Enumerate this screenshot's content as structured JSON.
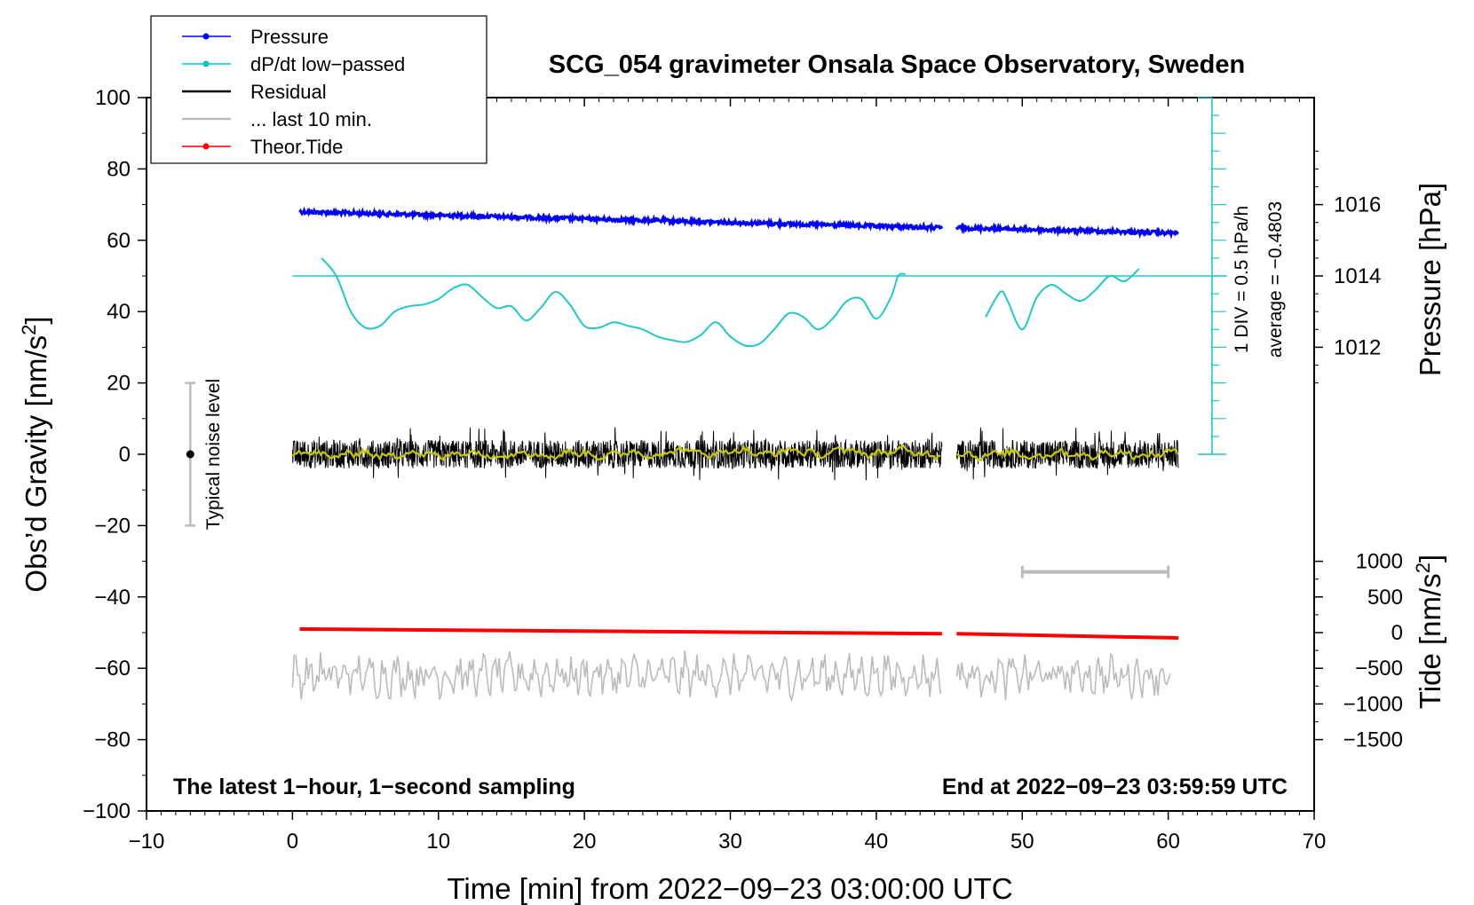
{
  "chart_data": {
    "type": "line",
    "title": "SCG_054 gravimeter Onsala Space Observatory, Sweden",
    "xlabel": "Time [min] from 2022−09−23 03:00:00 UTC",
    "ylabel_left": "Obs’d Gravity [nm/s",
    "ylabel_left_sup": "2",
    "ylabel_left_end": "]",
    "ylabel_pressure": "Pressure [hPa]",
    "ylabel_tide": "Tide [nm/s",
    "ylabel_tide_sup": "2",
    "ylabel_tide_end": "]",
    "xlim": [
      -10,
      70
    ],
    "ylim_left": [
      -100,
      100
    ],
    "x_ticks": [
      -10,
      0,
      10,
      20,
      30,
      40,
      50,
      60,
      70
    ],
    "x_tick_labels": [
      "−10",
      "0",
      "10",
      "20",
      "30",
      "40",
      "50",
      "60",
      "70"
    ],
    "y_ticks_left": [
      100,
      80,
      60,
      40,
      20,
      0,
      -20,
      -40,
      -60,
      -80,
      -100
    ],
    "y_tick_labels_left": [
      "100",
      "80",
      "60",
      "40",
      "20",
      "0",
      "−20",
      "−40",
      "−60",
      "−80",
      "−100"
    ],
    "pressure_ticks": [
      1016,
      1014,
      1012
    ],
    "pressure_tick_labels": [
      "1016",
      "1014",
      "1012"
    ],
    "pressure_scale": {
      "hpa_ref": 1014,
      "gravity_ref": 50,
      "gravity_per_hpa": 10
    },
    "tide_ticks": [
      1000,
      500,
      0,
      -500,
      -1000,
      -1500
    ],
    "tide_tick_labels": [
      "1000",
      "500",
      "0",
      "−500",
      "−1000",
      "−1500"
    ],
    "tide_scale": {
      "ref_value": 0,
      "gravity_ref": -50,
      "gravity_per_unit": 0.02
    },
    "legend": [
      {
        "label": "Pressure",
        "color": "#0000ff",
        "marker": true
      },
      {
        "label": "dP/dt low−passed",
        "color": "#00c8c8",
        "marker": true
      },
      {
        "label": "Residual",
        "color": "#000000",
        "marker": false
      },
      {
        "label": "... last 10 min.",
        "color": "#bbbbbb",
        "marker": false
      },
      {
        "label": "Theor.Tide",
        "color": "#ff0000",
        "marker": true
      }
    ],
    "series": [
      {
        "name": "Pressure",
        "color": "#0000ff",
        "unit": "hPa",
        "segments": [
          [
            0.5,
            1015.8,
            44.5,
            1015.35
          ],
          [
            45.5,
            1015.35,
            60.7,
            1015.2
          ]
        ]
      },
      {
        "name": "dP/dt low-passed",
        "color": "#20c8c8",
        "unit": "nm/s2 display",
        "points_a": [
          [
            2,
            55
          ],
          [
            3,
            50
          ],
          [
            4,
            40
          ],
          [
            5,
            35.5
          ],
          [
            6,
            36
          ],
          [
            7,
            40
          ],
          [
            8,
            41.5
          ],
          [
            9,
            42
          ],
          [
            10,
            43.5
          ],
          [
            11,
            46.5
          ],
          [
            12,
            47.5
          ],
          [
            13,
            44
          ],
          [
            14,
            41
          ],
          [
            15,
            41.5
          ],
          [
            16,
            37.5
          ],
          [
            17,
            41
          ],
          [
            18,
            45.5
          ],
          [
            19,
            42
          ],
          [
            20,
            36
          ],
          [
            21,
            35.5
          ],
          [
            22,
            37
          ],
          [
            23,
            36
          ],
          [
            24,
            35
          ],
          [
            25,
            33
          ],
          [
            26,
            32
          ],
          [
            27,
            31.5
          ],
          [
            28,
            33.5
          ],
          [
            29,
            37
          ],
          [
            30,
            33
          ],
          [
            31,
            30.5
          ],
          [
            32,
            31
          ],
          [
            33,
            35
          ],
          [
            34,
            39.5
          ],
          [
            35,
            38.5
          ],
          [
            36,
            35
          ],
          [
            37,
            38
          ],
          [
            38,
            43
          ],
          [
            39,
            43.5
          ],
          [
            40,
            38
          ],
          [
            41,
            44
          ],
          [
            41.5,
            50
          ],
          [
            42,
            50.5
          ]
        ],
        "points_b": [
          [
            47.5,
            38.5
          ],
          [
            48.5,
            45.5
          ],
          [
            49,
            43
          ],
          [
            50,
            35
          ],
          [
            51,
            44
          ],
          [
            52,
            47.5
          ],
          [
            53,
            45
          ],
          [
            54,
            43
          ],
          [
            55,
            46
          ],
          [
            56,
            50
          ],
          [
            57,
            48.5
          ],
          [
            58,
            52
          ]
        ]
      },
      {
        "name": "Residual",
        "color": "#000000",
        "unit": "nm/s2",
        "segments": [
          [
            0,
            44.5
          ],
          [
            45.5,
            60.7
          ]
        ],
        "amplitude": 5
      },
      {
        "name": "Residual smoothed",
        "color": "#c8c800",
        "unit": "nm/s2",
        "segments": [
          [
            0,
            44.5
          ],
          [
            45.5,
            60.7
          ]
        ]
      },
      {
        "name": "Last 10 min",
        "color": "#bbbbbb",
        "unit": "nm/s2",
        "segments": [
          [
            0,
            44.5
          ],
          [
            45.5,
            60.2
          ]
        ],
        "center": -62
      },
      {
        "name": "Theor.Tide",
        "color": "#ff0000",
        "unit": "nm/s2",
        "segments": [
          [
            0.5,
            -49,
            44.5,
            -50.3
          ],
          [
            45.5,
            -50.3,
            60.7,
            -51.5
          ]
        ]
      }
    ],
    "dpdt_average": "average = −0.4803",
    "dpdt_scale": "1 DIV = 0.5 hPa/h",
    "noise_label": "Typical noise level",
    "noise_range": [
      -20,
      20
    ],
    "note_left": "The latest 1−hour, 1−second sampling",
    "note_right": "End at 2022−09−23 03:59:59 UTC"
  }
}
